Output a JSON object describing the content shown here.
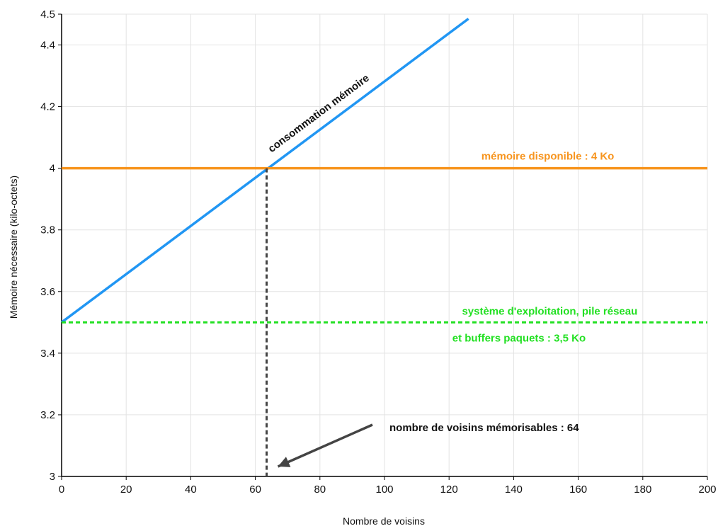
{
  "chart_data": {
    "type": "line",
    "xlabel": "Nombre de voisins",
    "ylabel": "Mémoire nécessaire (kilo-octets)",
    "xlim": [
      0,
      200
    ],
    "ylim": [
      3,
      4.5
    ],
    "grid": true,
    "x_ticks": [
      0,
      20,
      40,
      60,
      80,
      100,
      120,
      140,
      160,
      180,
      200
    ],
    "y_ticks": [
      3,
      3.2,
      3.4,
      3.6,
      3.8,
      4,
      4.2,
      4.4,
      4.5
    ],
    "series": [
      {
        "key": "consumption",
        "name": "consommation mémoire",
        "color": "#2196f3",
        "style": "solid",
        "points": [
          [
            0,
            3.5
          ],
          [
            126,
            4.485
          ]
        ]
      },
      {
        "key": "available",
        "name": "mémoire disponible : 4 Ko",
        "color": "#f7941d",
        "style": "solid",
        "points": [
          [
            0,
            4
          ],
          [
            200,
            4
          ]
        ]
      },
      {
        "key": "os",
        "name_lines": [
          "système d'exploitation, pile réseau",
          "et buffers paquets : 3,5 Ko"
        ],
        "color": "#22e022",
        "style": "dashed",
        "points": [
          [
            0,
            3.5
          ],
          [
            200,
            3.5
          ]
        ]
      }
    ],
    "annotations": {
      "intersection_x": 63.5,
      "intersection_y": 4,
      "marker_color": "#444444",
      "text": "nombre de voisins mémorisables : 64"
    }
  }
}
